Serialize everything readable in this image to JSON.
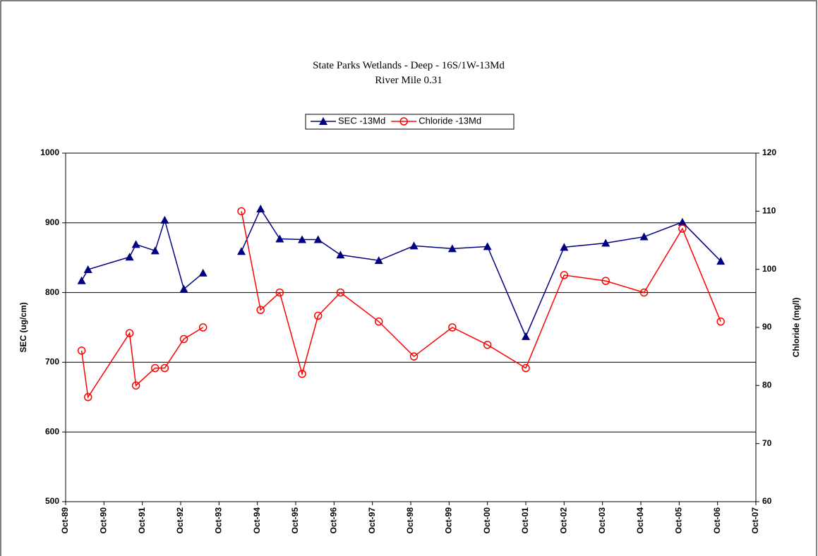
{
  "chart_data": {
    "type": "line",
    "title": "State Parks Wetlands - Deep  - 16S/1W-13Md",
    "subtitle": "River Mile 0.31",
    "y_label": "SEC (ug/cm)",
    "y2_label": "Chloride (mg/l)",
    "x": [
      "1990-03",
      "1990-05",
      "1991-06",
      "1991-08",
      "1992-02",
      "1992-05",
      "1992-11",
      "1993-05",
      null,
      "1994-05",
      "1994-11",
      "1995-05",
      "1995-12",
      "1996-05",
      "1996-12",
      "1997-12",
      "1998-11",
      "1999-11",
      "2000-10",
      "2001-10",
      "2002-10",
      "2003-11",
      "2004-11",
      "2005-11",
      "2006-11"
    ],
    "series": [
      {
        "name": "SEC -13Md",
        "color": "#000080",
        "marker": "triangle",
        "values": [
          817,
          833,
          851,
          869,
          860,
          904,
          805,
          828,
          null,
          859,
          920,
          877,
          876,
          876,
          854,
          846,
          867,
          863,
          866,
          737,
          865,
          871,
          880,
          901,
          845
        ]
      },
      {
        "name": "Chloride -13Md",
        "color": "#ff0000",
        "marker": "circle",
        "axis": "y2",
        "values": [
          86,
          78,
          89,
          80,
          83,
          83,
          88,
          90,
          null,
          110,
          93,
          96,
          82,
          92,
          96,
          91,
          85,
          90,
          87,
          83,
          99,
          98,
          96,
          107,
          91
        ]
      }
    ],
    "xlim": [
      "1989-10",
      "2007-10"
    ],
    "xticks": [
      {
        "value": "1989-10",
        "label": "Oct-89"
      },
      {
        "value": "1990-10",
        "label": "Oct-90"
      },
      {
        "value": "1991-10",
        "label": "Oct-91"
      },
      {
        "value": "1992-10",
        "label": "Oct-92"
      },
      {
        "value": "1993-10",
        "label": "Oct-93"
      },
      {
        "value": "1994-10",
        "label": "Oct-94"
      },
      {
        "value": "1995-10",
        "label": "Oct-95"
      },
      {
        "value": "1996-10",
        "label": "Oct-96"
      },
      {
        "value": "1997-10",
        "label": "Oct-97"
      },
      {
        "value": "1998-10",
        "label": "Oct-98"
      },
      {
        "value": "1999-10",
        "label": "Oct-99"
      },
      {
        "value": "2000-10",
        "label": "Oct-00"
      },
      {
        "value": "2001-10",
        "label": "Oct-01"
      },
      {
        "value": "2002-10",
        "label": "Oct-02"
      },
      {
        "value": "2003-10",
        "label": "Oct-03"
      },
      {
        "value": "2004-10",
        "label": "Oct-04"
      },
      {
        "value": "2005-10",
        "label": "Oct-05"
      },
      {
        "value": "2006-10",
        "label": "Oct-06"
      },
      {
        "value": "2007-10",
        "label": "Oct-07"
      }
    ],
    "ylim": [
      500,
      1000
    ],
    "yticks": [
      500,
      600,
      700,
      800,
      900,
      1000
    ],
    "y2lim": [
      60,
      120
    ],
    "y2ticks": [
      60,
      70,
      80,
      90,
      100,
      110,
      120
    ],
    "grid": true,
    "legend": "top"
  }
}
